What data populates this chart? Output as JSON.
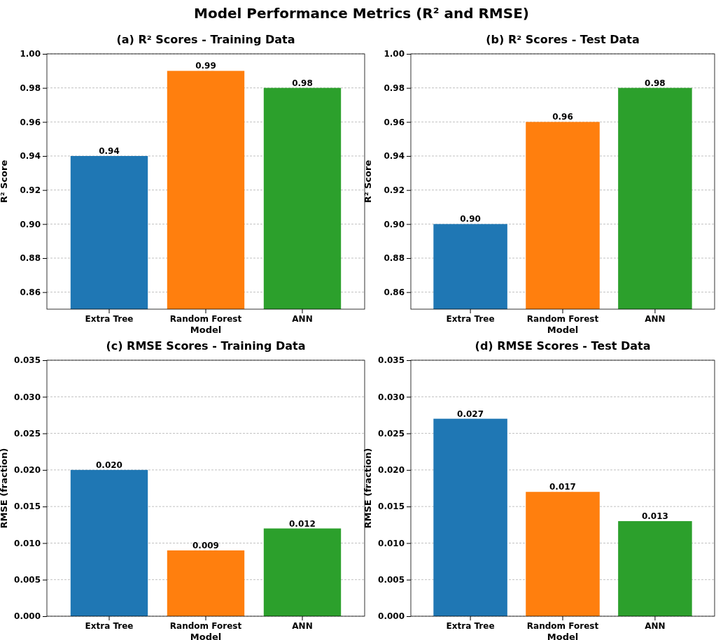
{
  "chart_data": [
    {
      "type": "other",
      "title": "Model Performance Metrics (R² and RMSE)"
    },
    {
      "type": "bar",
      "title": "(a) R² Scores - Training Data",
      "xlabel": "Model",
      "ylabel": "R² Score",
      "categories": [
        "Extra Tree",
        "Random Forest",
        "ANN"
      ],
      "values": [
        0.94,
        0.99,
        0.98
      ],
      "colors": [
        "#1f77b4",
        "#ff7f0e",
        "#2ca02c"
      ],
      "value_labels": [
        "0.94",
        "0.99",
        "0.98"
      ],
      "ylim": [
        0.85,
        1.0
      ],
      "yticks": [
        {
          "value": 0.86,
          "label": "0.86"
        },
        {
          "value": 0.88,
          "label": "0.88"
        },
        {
          "value": 0.9,
          "label": "0.90"
        },
        {
          "value": 0.92,
          "label": "0.92"
        },
        {
          "value": 0.94,
          "label": "0.94"
        },
        {
          "value": 0.96,
          "label": "0.96"
        },
        {
          "value": 0.98,
          "label": "0.98"
        },
        {
          "value": 1.0,
          "label": "1.00"
        }
      ],
      "grid": "y"
    },
    {
      "type": "bar",
      "title": "(b) R² Scores - Test Data",
      "xlabel": "Model",
      "ylabel": "R² Score",
      "categories": [
        "Extra Tree",
        "Random Forest",
        "ANN"
      ],
      "values": [
        0.9,
        0.96,
        0.98
      ],
      "colors": [
        "#1f77b4",
        "#ff7f0e",
        "#2ca02c"
      ],
      "value_labels": [
        "0.90",
        "0.96",
        "0.98"
      ],
      "ylim": [
        0.85,
        1.0
      ],
      "yticks": [
        {
          "value": 0.86,
          "label": "0.86"
        },
        {
          "value": 0.88,
          "label": "0.88"
        },
        {
          "value": 0.9,
          "label": "0.90"
        },
        {
          "value": 0.92,
          "label": "0.92"
        },
        {
          "value": 0.94,
          "label": "0.94"
        },
        {
          "value": 0.96,
          "label": "0.96"
        },
        {
          "value": 0.98,
          "label": "0.98"
        },
        {
          "value": 1.0,
          "label": "1.00"
        }
      ],
      "grid": "y"
    },
    {
      "type": "bar",
      "title": "(c) RMSE Scores - Training Data",
      "xlabel": "Model",
      "ylabel": "RMSE (fraction)",
      "categories": [
        "Extra Tree",
        "Random Forest",
        "ANN"
      ],
      "values": [
        0.02,
        0.009,
        0.012
      ],
      "colors": [
        "#1f77b4",
        "#ff7f0e",
        "#2ca02c"
      ],
      "value_labels": [
        "0.020",
        "0.009",
        "0.012"
      ],
      "ylim": [
        0,
        0.035
      ],
      "yticks": [
        {
          "value": 0,
          "label": "0.000"
        },
        {
          "value": 0.005,
          "label": "0.005"
        },
        {
          "value": 0.01,
          "label": "0.010"
        },
        {
          "value": 0.015,
          "label": "0.015"
        },
        {
          "value": 0.02,
          "label": "0.020"
        },
        {
          "value": 0.025,
          "label": "0.025"
        },
        {
          "value": 0.03,
          "label": "0.030"
        },
        {
          "value": 0.035,
          "label": "0.035"
        }
      ],
      "grid": "y"
    },
    {
      "type": "bar",
      "title": "(d) RMSE Scores - Test Data",
      "xlabel": "Model",
      "ylabel": "RMSE (fraction)",
      "categories": [
        "Extra Tree",
        "Random Forest",
        "ANN"
      ],
      "values": [
        0.027,
        0.017,
        0.013
      ],
      "colors": [
        "#1f77b4",
        "#ff7f0e",
        "#2ca02c"
      ],
      "value_labels": [
        "0.027",
        "0.017",
        "0.013"
      ],
      "ylim": [
        0,
        0.035
      ],
      "yticks": [
        {
          "value": 0,
          "label": "0.000"
        },
        {
          "value": 0.005,
          "label": "0.005"
        },
        {
          "value": 0.01,
          "label": "0.010"
        },
        {
          "value": 0.015,
          "label": "0.015"
        },
        {
          "value": 0.02,
          "label": "0.020"
        },
        {
          "value": 0.025,
          "label": "0.025"
        },
        {
          "value": 0.03,
          "label": "0.030"
        },
        {
          "value": 0.035,
          "label": "0.035"
        }
      ],
      "grid": "y"
    }
  ]
}
